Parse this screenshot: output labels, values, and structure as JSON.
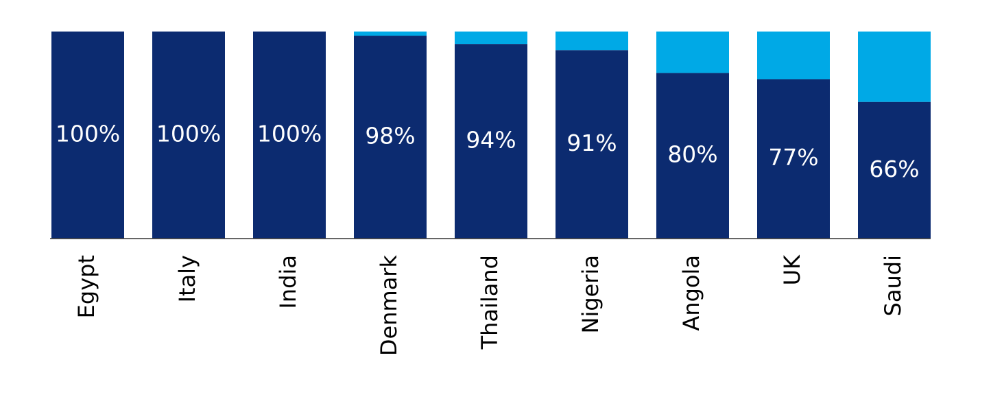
{
  "chart_data": {
    "type": "stacked_bar",
    "categories": [
      "Egypt",
      "Italy",
      "India",
      "Denmark",
      "Thailand",
      "Nigeria",
      "Angola",
      "UK",
      "Saudi"
    ],
    "series": [
      {
        "color": "#0c2b70",
        "values": [
          100,
          100,
          100,
          98,
          94,
          91,
          80,
          77,
          66
        ],
        "value_labels": [
          "100%",
          "100%",
          "100%",
          "98%",
          "94%",
          "91%",
          "80%",
          "77%",
          "66%"
        ]
      },
      {
        "color": "#00a9e6",
        "values": [
          0,
          0,
          0,
          2,
          6,
          9,
          20,
          23,
          34
        ]
      }
    ],
    "ylim": [
      0,
      100
    ]
  }
}
